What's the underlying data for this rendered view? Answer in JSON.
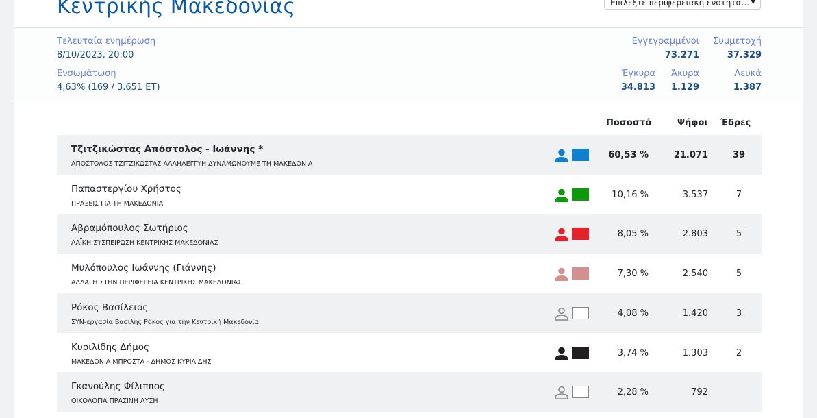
{
  "header": {
    "title": "Κεντρικής Μακεδονίας",
    "select_placeholder": "Επιλέξτε περιφερειακή ενότητα..."
  },
  "stats": {
    "last_update_label": "Τελευταία ενημέρωση",
    "last_update_value": "8/10/2023, 20:00",
    "integration_label": "Ενσωμάτωση",
    "integration_value": "4,63% (169 / 3.651 ΕΤ)",
    "registered_label": "Εγγεγραμμένοι",
    "registered_value": "73.271",
    "turnout_label": "Συμμετοχή",
    "turnout_value": "37.329",
    "valid_label": "Έγκυρα",
    "valid_value": "34.813",
    "invalid_label": "Άκυρα",
    "invalid_value": "1.129",
    "blank_label": "Λευκά",
    "blank_value": "1.387"
  },
  "table": {
    "headers": {
      "percent": "Ποσοστό",
      "votes": "Ψήφοι",
      "seats": "Έδρες"
    },
    "rows": [
      {
        "candidate": "Τζιτζικώστας Απόστολος - Ιωάννης *",
        "party": "ΑΠΟΣΤΟΛΟΣ ΤΖΙΤΖΙΚΩΣΤΑΣ ΑΛΛΗΛΕΓΓΥΗ ΔΥΝΑΜΩΝΟΥΜΕ ΤΗ ΜΑΚΕΔΟΝΙΑ",
        "percent": "60,53 %",
        "votes": "21.071",
        "seats": "39",
        "color": "#0f7fd0",
        "bold": true
      },
      {
        "candidate": "Παπαστεργίου Χρήστος",
        "party": "ΠΡΑΞΕΙΣ ΓΙΑ ΤΗ ΜΑΚΕΔΟΝΙΑ",
        "percent": "10,16 %",
        "votes": "3.537",
        "seats": "7",
        "color": "#0a9a0a"
      },
      {
        "candidate": "Αβραμόπουλος Σωτήριος",
        "party": "ΛΑΪΚΗ ΣΥΣΠΕΙΡΩΣΗ ΚΕΝΤΡΙΚΗΣ ΜΑΚΕΔΟΝΙΑΣ",
        "percent": "8,05 %",
        "votes": "2.803",
        "seats": "5",
        "color": "#e52229"
      },
      {
        "candidate": "Μυλόπουλος Ιωάννης (Γιάννης)",
        "party": "ΑΛΛΑΓΗ ΣΤΗΝ ΠΕΡΙΦΕΡΕΙΑ ΚΕΝΤΡΙΚΗΣ ΜΑΚΕΔΟΝΙΑΣ",
        "percent": "7,30 %",
        "votes": "2.540",
        "seats": "5",
        "color": "#d49090"
      },
      {
        "candidate": "Ρόκος Βασίλειος",
        "party": "ΣΥΝ-εργασία Βασίλης Ρόκος για την Κεντρική Μακεδονία",
        "percent": "4,08 %",
        "votes": "1.420",
        "seats": "3",
        "color": "#ffffff"
      },
      {
        "candidate": "Κυριλίδης Δήμος",
        "party": "ΜΑΚΕΔΟΝΙΑ ΜΠΡΟΣΤΑ - ΔΗΜΟΣ ΚΥΡΙΛΙΔΗΣ",
        "percent": "3,74 %",
        "votes": "1.303",
        "seats": "2",
        "color": "#231f20"
      },
      {
        "candidate": "Γκανούλης Φίλιππος",
        "party": "ΟΙΚΟΛΟΓΙΑ ΠΡΑΣΙΝΗ ΛΥΣΗ",
        "percent": "2,28 %",
        "votes": "792",
        "seats": "",
        "color": "#ffffff"
      }
    ]
  }
}
